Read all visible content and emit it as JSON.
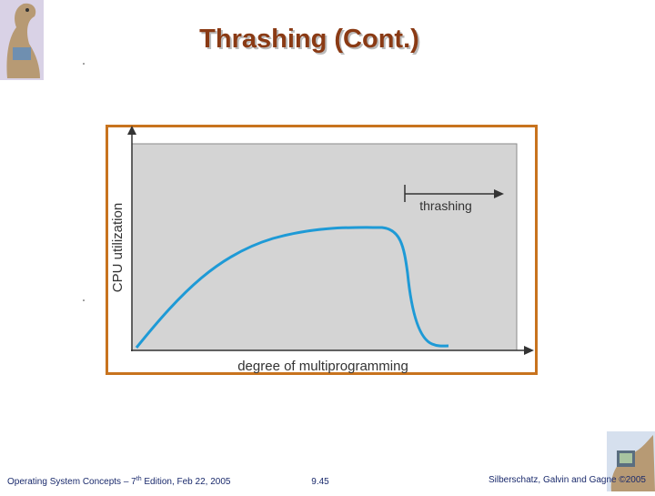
{
  "header": {
    "title": "Thrashing (Cont.)"
  },
  "figure": {
    "y_axis_label": "CPU utilization",
    "x_axis_label": "degree of multiprogramming",
    "annotation": "thrashing"
  },
  "footer": {
    "left": {
      "text": "Operating System Concepts – 7",
      "superscript": "th",
      "rest": " Edition, Feb 22, 2005"
    },
    "center": "9.45",
    "right": "Silberschatz, Galvin and Gagne ©2005"
  }
}
